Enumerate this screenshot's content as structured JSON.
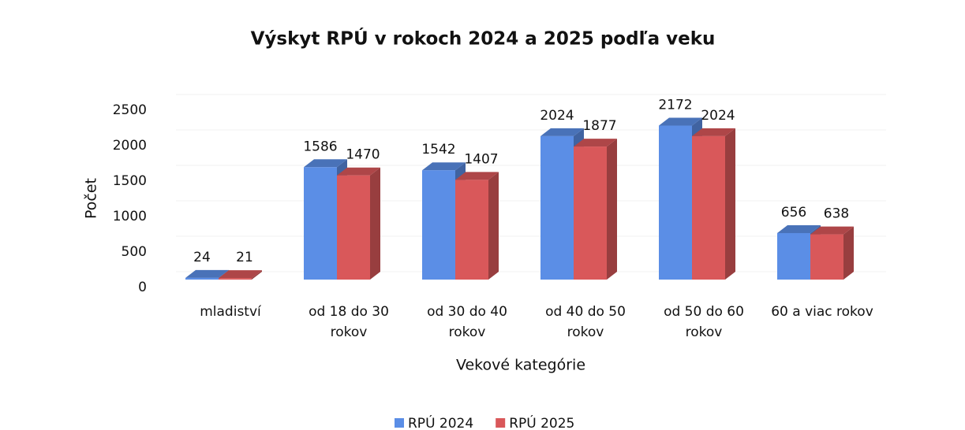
{
  "chart_data": {
    "type": "bar3d",
    "title": "Výskyt RPÚ v rokoch 2024 a 2025 podľa veku",
    "y_label": "Počet",
    "x_label": "Vekové kategórie",
    "categories": [
      "mladiství",
      "od 18 do 30 rokov",
      "od 30 do 40 rokov",
      "od 40 do 50 rokov",
      "od 50 do 60 rokov",
      "60 a viac rokov"
    ],
    "series": [
      {
        "name": "RPÚ 2024",
        "color": "#5b8ee6",
        "values": [
          24,
          1586,
          1542,
          2024,
          2172,
          656
        ]
      },
      {
        "name": "RPÚ 2025",
        "color": "#d9585a",
        "values": [
          21,
          1470,
          1407,
          1877,
          2024,
          638
        ]
      }
    ],
    "ylim": [
      0,
      2500
    ],
    "yticks": [
      0,
      500,
      1000,
      1500,
      2000,
      2500
    ],
    "legend": "bottom"
  }
}
